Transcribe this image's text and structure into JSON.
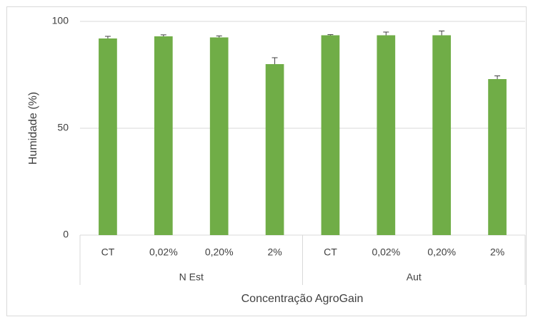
{
  "chart_data": {
    "type": "bar",
    "y_label": "Humidade (%)",
    "x_label": "Concentração AgroGain",
    "categories": [
      "CT",
      "0,02%",
      "0,20%",
      "2%"
    ],
    "series": [
      {
        "name": "N Est",
        "color": "#70ad47",
        "values": [
          92,
          93,
          92.5,
          80
        ],
        "errors": [
          1,
          0.7,
          0.7,
          3
        ]
      },
      {
        "name": "Aut",
        "color": "#70ad47",
        "values": [
          93.5,
          93.5,
          93.5,
          73
        ],
        "errors": [
          0.3,
          1.5,
          2,
          1.5
        ]
      }
    ],
    "ylim": [
      0,
      100
    ],
    "yticks": [
      0,
      50,
      100
    ],
    "grid": true
  }
}
